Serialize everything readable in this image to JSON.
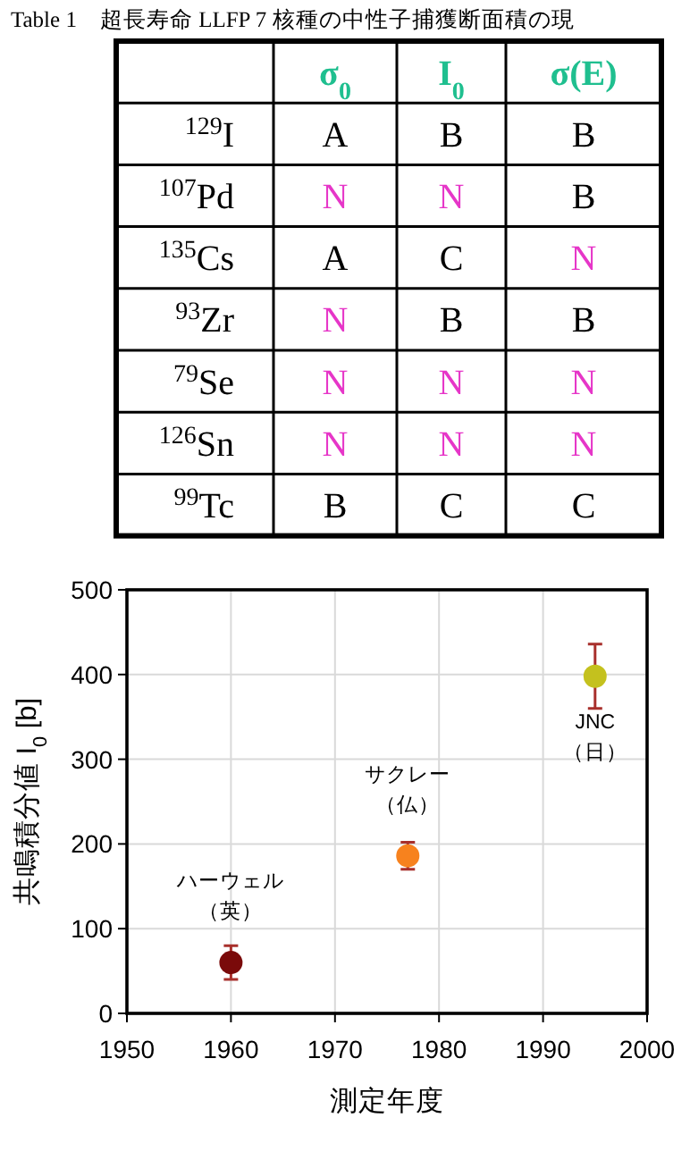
{
  "chart_data": [
    {
      "type": "other",
      "title": "Table 1　超長寿命 LLFP 7 核種の中性子捕獲断面積の現",
      "annotations": [
        "σ$_{0}$",
        "I$_{0}$",
        "σ(E)",
        "$^{129}$I",
        "A",
        "B",
        "B",
        "$^{107}$Pd",
        "N",
        "N",
        "B",
        "$^{135}$Cs",
        "A",
        "C",
        "N",
        "$^{93}$Zr",
        "N",
        "B",
        "B",
        "$^{79}$Se",
        "N",
        "N",
        "N",
        "$^{126}$Sn",
        "N",
        "N",
        "N",
        "$^{99}$Tc",
        "B",
        "C",
        "C"
      ],
      "colors": [
        "#1fbf8f",
        "#1fbf8f",
        "#1fbf8f",
        "#000000",
        "#000000",
        "#000000",
        "#000000",
        "#000000",
        "#e636c8",
        "#e636c8",
        "#000000",
        "#000000",
        "#000000",
        "#000000",
        "#e636c8",
        "#000000",
        "#e636c8",
        "#000000",
        "#000000",
        "#000000",
        "#e636c8",
        "#e636c8",
        "#e636c8",
        "#000000",
        "#e636c8",
        "#e636c8",
        "#e636c8",
        "#000000",
        "#000000",
        "#000000",
        "#000000"
      ]
    },
    {
      "type": "scatter",
      "xlabel": "測定年度",
      "ylabel": "共鳴積分値  I$_{0}$ [b]",
      "xlim": [
        1950,
        2000
      ],
      "xticks": [
        1950,
        1960,
        1970,
        1980,
        1990,
        2000
      ],
      "ylim": [
        0,
        500
      ],
      "yticks": [
        0,
        100,
        200,
        300,
        400,
        500
      ],
      "grid": true,
      "marker": "circle",
      "series": [
        {
          "x": [
            1960,
            1977,
            1995
          ],
          "values": [
            60,
            186,
            398
          ],
          "colors": [
            "#7a0a0a",
            "#f7821e",
            "#c4c11e"
          ],
          "errors": [
            [
              40,
              80
            ],
            [
              170,
              202
            ],
            [
              360,
              436
            ]
          ]
        }
      ],
      "annotations": [
        "ハーウェル",
        "（英）",
        "サクレー",
        "（仏）",
        "JNC",
        "（日）"
      ]
    }
  ]
}
